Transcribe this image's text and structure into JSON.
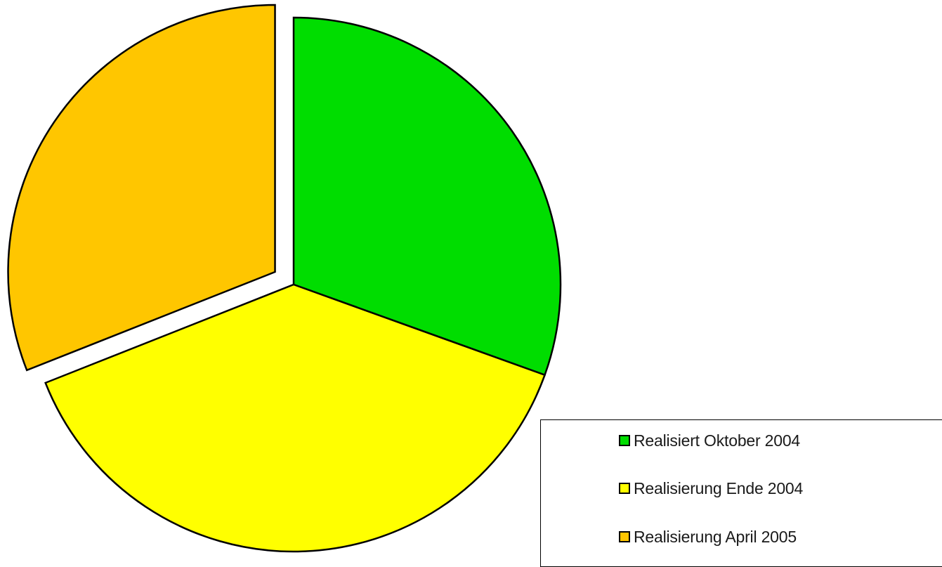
{
  "chart_data": {
    "type": "pie",
    "series": [
      {
        "name": "Realisiert Oktober 2004",
        "value": 30.5,
        "color": "#00dd00",
        "exploded": false
      },
      {
        "name": "Realisierung Ende 2004",
        "value": 38.5,
        "color": "#ffff00",
        "exploded": false
      },
      {
        "name": "Realisierung April 2005",
        "value": 31.0,
        "color": "#ffc600",
        "exploded": true
      }
    ],
    "start_angle_deg": 0,
    "direction": "clockwise",
    "legend_position": "bottom-right"
  },
  "legend": {
    "items": [
      {
        "label": "Realisiert Oktober 2004",
        "color": "#00dd00"
      },
      {
        "label": "Realisierung Ende 2004",
        "color": "#ffff00"
      },
      {
        "label": "Realisierung April 2005",
        "color": "#ffc600"
      }
    ]
  }
}
